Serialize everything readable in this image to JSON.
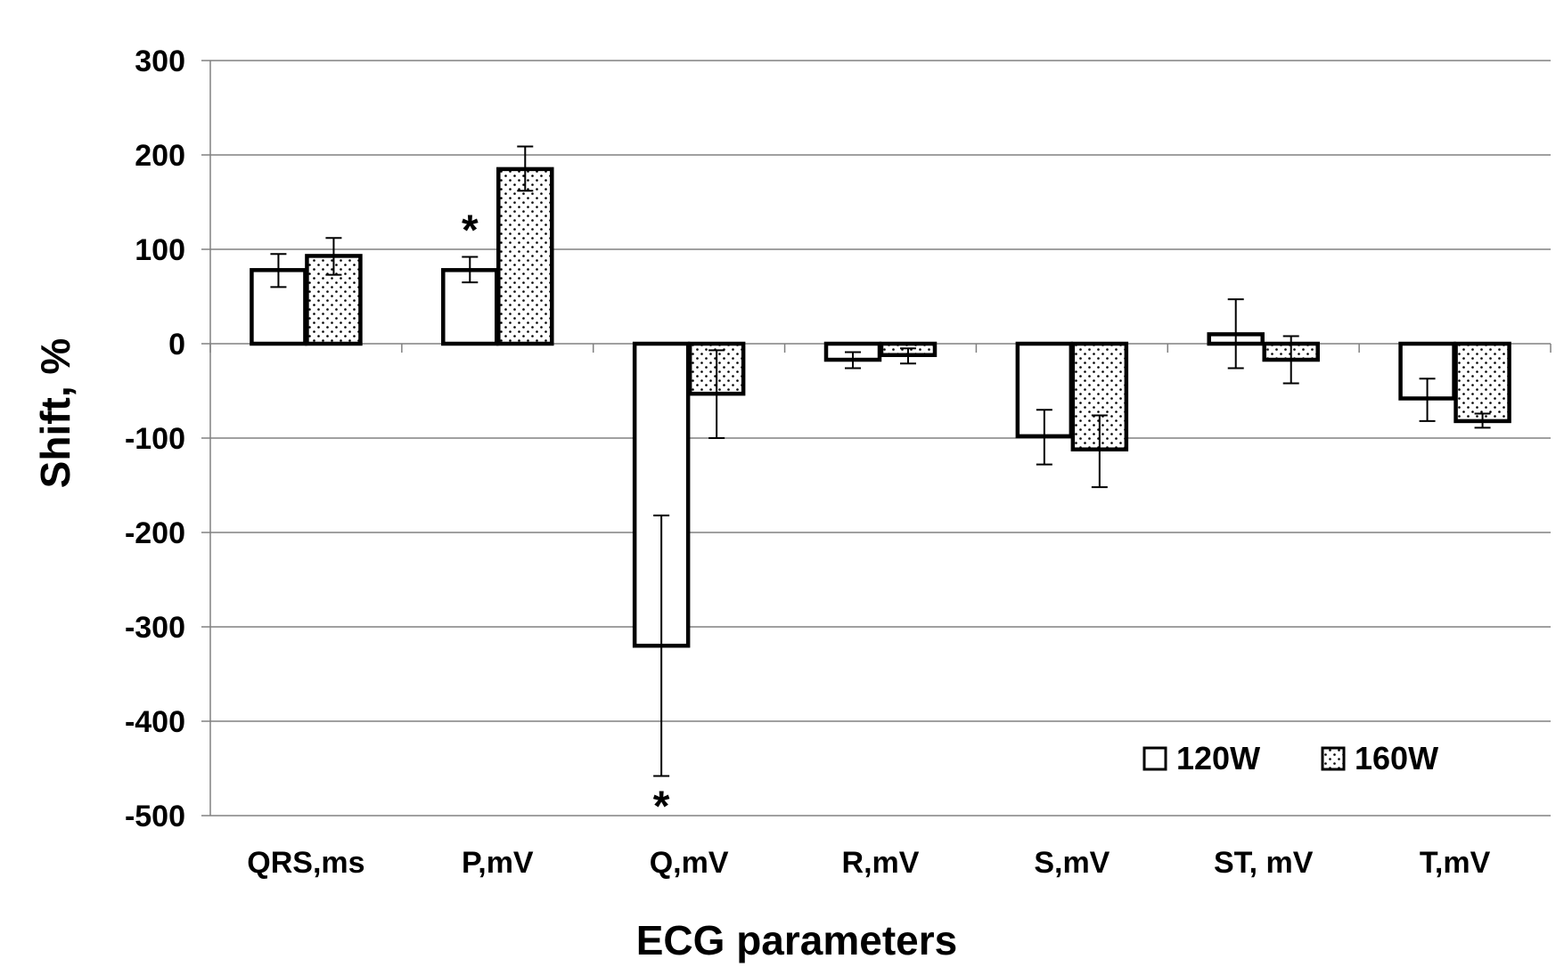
{
  "chart_data": {
    "type": "bar",
    "title": "",
    "xlabel": "ECG parameters",
    "ylabel": "Shift, %",
    "ylim": [
      -500,
      300
    ],
    "yticks": [
      300,
      200,
      100,
      0,
      -100,
      -200,
      -300,
      -400,
      -500
    ],
    "grid": true,
    "legend_position": "bottom-right",
    "categories": [
      "QRS,ms",
      "P,mV",
      "Q,mV",
      "R,mV",
      "S,mV",
      "ST, mV",
      "T,mV"
    ],
    "series": [
      {
        "name": "120W",
        "pattern": "open",
        "values": [
          78,
          78,
          -320,
          -17,
          -98,
          10,
          -58
        ],
        "err_low": [
          60,
          65,
          -458,
          -26,
          -128,
          -26,
          -82
        ],
        "err_high": [
          95,
          92,
          -182,
          -9,
          -70,
          47,
          -37
        ]
      },
      {
        "name": "160W",
        "pattern": "dotted",
        "values": [
          93,
          185,
          -53,
          -12,
          -112,
          -17,
          -82
        ],
        "err_low": [
          73,
          162,
          -100,
          -21,
          -152,
          -42,
          -89
        ],
        "err_high": [
          112,
          209,
          -7,
          -5,
          -76,
          8,
          -74
        ]
      }
    ],
    "annotations": [
      {
        "text": "*",
        "category": "P,mV",
        "series": "120W",
        "placement": "above"
      },
      {
        "text": "*",
        "category": "Q,mV",
        "series": "120W",
        "placement": "below"
      }
    ],
    "colors": {
      "bar_edge": "#000000",
      "fill": "#ffffff",
      "dots": "#000000",
      "grid": "#808080"
    }
  }
}
